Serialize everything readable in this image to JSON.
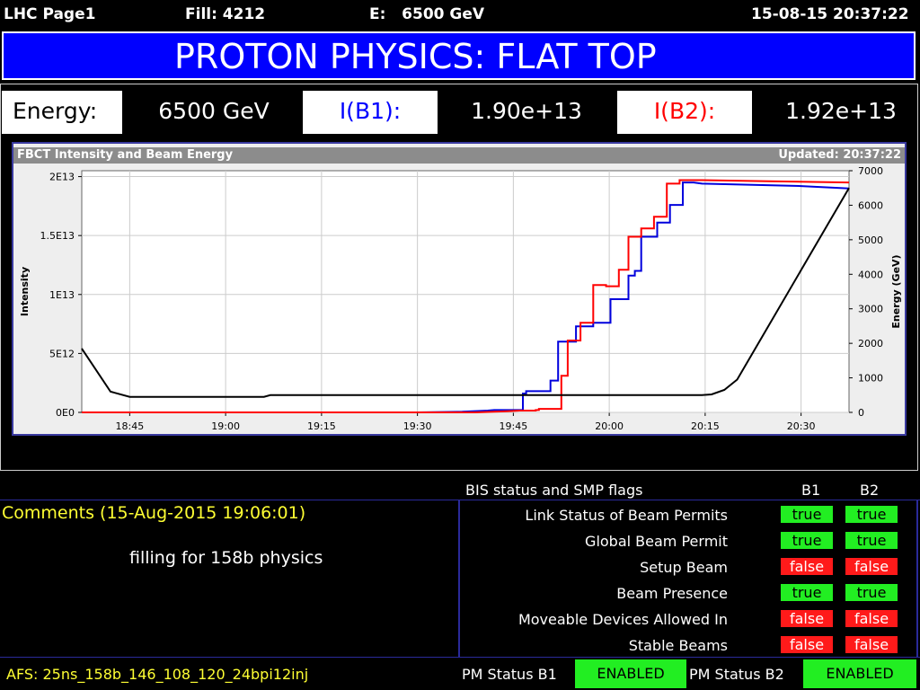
{
  "header": {
    "page": "LHC Page1",
    "fill": "Fill: 4212",
    "energy": "E:   6500 GeV",
    "datetime": "15-08-15 20:37:22"
  },
  "banner": {
    "title": "PROTON PHYSICS: FLAT TOP"
  },
  "energy_row": {
    "energy_label": "Energy:",
    "energy_value": "6500 GeV",
    "b1_label": "I(B1):",
    "b1_value": "1.90e+13",
    "b2_label": "I(B2):",
    "b2_value": "1.92e+13"
  },
  "chart": {
    "title": "FBCT Intensity and Beam Energy",
    "updated": "Updated: 20:37:22"
  },
  "chart_data": {
    "type": "line",
    "title": "FBCT Intensity and Beam Energy",
    "ylabel": "Intensity",
    "y2label": "Energy (GeV)",
    "x_ticks": [
      "18:45",
      "19:00",
      "19:15",
      "19:30",
      "19:45",
      "20:00",
      "20:15",
      "20:30"
    ],
    "x_tick_minutes": [
      45,
      60,
      75,
      90,
      105,
      120,
      135,
      150
    ],
    "xlim_minutes": [
      37.5,
      157.5
    ],
    "y_ticks": [
      "0E0",
      "5E12",
      "1E13",
      "1.5E13",
      "2E13"
    ],
    "y_tick_values": [
      0,
      5000000000000.0,
      10000000000000.0,
      15000000000000.0,
      20000000000000.0
    ],
    "ylim": [
      0,
      20500000000000.0
    ],
    "y2_ticks": [
      "0",
      "1000",
      "2000",
      "3000",
      "4000",
      "5000",
      "6000",
      "7000"
    ],
    "y2_tick_values": [
      0,
      1000,
      2000,
      3000,
      4000,
      5000,
      6000,
      7000
    ],
    "y2lim": [
      0,
      7000
    ],
    "grid": true,
    "series": [
      {
        "color": "#0000dd",
        "axis": "left",
        "x": [
          37.5,
          90,
          97,
          101,
          102,
          106.5,
          106.5,
          107,
          107,
          110.8,
          110.8,
          112,
          112,
          114.8,
          114.8,
          117.5,
          117.5,
          120.2,
          120.2,
          123,
          123,
          124,
          124,
          125,
          125,
          127.5,
          127.5,
          129.5,
          129.5,
          131.5,
          131.5,
          133.2,
          133.2,
          134.5,
          150,
          157.5
        ],
        "y": [
          0,
          0,
          50000000000.0,
          150000000000.0,
          200000000000.0,
          200000000000.0,
          1600000000000.0,
          1600000000000.0,
          1800000000000.0,
          1800000000000.0,
          2700000000000.0,
          2700000000000.0,
          6000000000000.0,
          6000000000000.0,
          7300000000000.0,
          7300000000000.0,
          7600000000000.0,
          7600000000000.0,
          9600000000000.0,
          9600000000000.0,
          11600000000000.0,
          11600000000000.0,
          12000000000000.0,
          12000000000000.0,
          14900000000000.0,
          14900000000000.0,
          16100000000000.0,
          16100000000000.0,
          17600000000000.0,
          17600000000000.0,
          19500000000000.0,
          19500000000000.0,
          19500000000000.0,
          19400000000000.0,
          19200000000000.0,
          19000000000000.0
        ]
      },
      {
        "color": "#ff0000",
        "axis": "left",
        "x": [
          37.5,
          99,
          104,
          106,
          108.5,
          108.5,
          109,
          109,
          112.5,
          112.5,
          113.5,
          113.5,
          115.5,
          115.5,
          117.5,
          117.5,
          119.5,
          119.5,
          121.5,
          121.5,
          123,
          123,
          125,
          125,
          127,
          127,
          129,
          129,
          131,
          131,
          133,
          133,
          134.5,
          145,
          157.5
        ],
        "y": [
          0,
          0,
          100000000000.0,
          150000000000.0,
          150000000000.0,
          200000000000.0,
          200000000000.0,
          300000000000.0,
          300000000000.0,
          3100000000000.0,
          3100000000000.0,
          6100000000000.0,
          6100000000000.0,
          7600000000000.0,
          7600000000000.0,
          10800000000000.0,
          10800000000000.0,
          10700000000000.0,
          10700000000000.0,
          12100000000000.0,
          12100000000000.0,
          14900000000000.0,
          14900000000000.0,
          15600000000000.0,
          15600000000000.0,
          16600000000000.0,
          16600000000000.0,
          19400000000000.0,
          19400000000000.0,
          19700000000000.0,
          19700000000000.0,
          19700000000000.0,
          19700000000000.0,
          19600000000000.0,
          19500000000000.0
        ]
      },
      {
        "color": "#000000",
        "axis": "right",
        "x": [
          37.5,
          42,
          45,
          60,
          66,
          67,
          100,
          110,
          124,
          133.5,
          134.5,
          136,
          138,
          140,
          157.5
        ],
        "y": [
          1850,
          600,
          450,
          450,
          450,
          500,
          500,
          500,
          500,
          500,
          500,
          520,
          650,
          950,
          6500
        ]
      }
    ]
  },
  "bis": {
    "title": "BIS status and SMP flags",
    "col_b1": "B1",
    "col_b2": "B2",
    "rows": [
      {
        "label": "Link Status of Beam Permits",
        "b1": "true",
        "b2": "true"
      },
      {
        "label": "Global Beam Permit",
        "b1": "true",
        "b2": "true"
      },
      {
        "label": "Setup Beam",
        "b1": "false",
        "b2": "false"
      },
      {
        "label": "Beam Presence",
        "b1": "true",
        "b2": "true"
      },
      {
        "label": "Moveable Devices Allowed In",
        "b1": "false",
        "b2": "false"
      },
      {
        "label": "Stable Beams",
        "b1": "false",
        "b2": "false"
      }
    ]
  },
  "comments": {
    "header": "Comments (15-Aug-2015 19:06:01)",
    "text": "filling for 158b physics"
  },
  "footer": {
    "afs": "AFS: 25ns_158b_146_108_120_24bpi12inj",
    "pm_b1_label": "PM Status B1",
    "pm_b1_value": "ENABLED",
    "pm_b2_label": "PM Status B2",
    "pm_b2_value": "ENABLED"
  },
  "colors": {
    "banner": "#0000ff",
    "b1": "#0000dd",
    "b2": "#ff0000",
    "flag_true": "#22ee22",
    "flag_false": "#ff1a1a",
    "comment": "#ffff33"
  }
}
